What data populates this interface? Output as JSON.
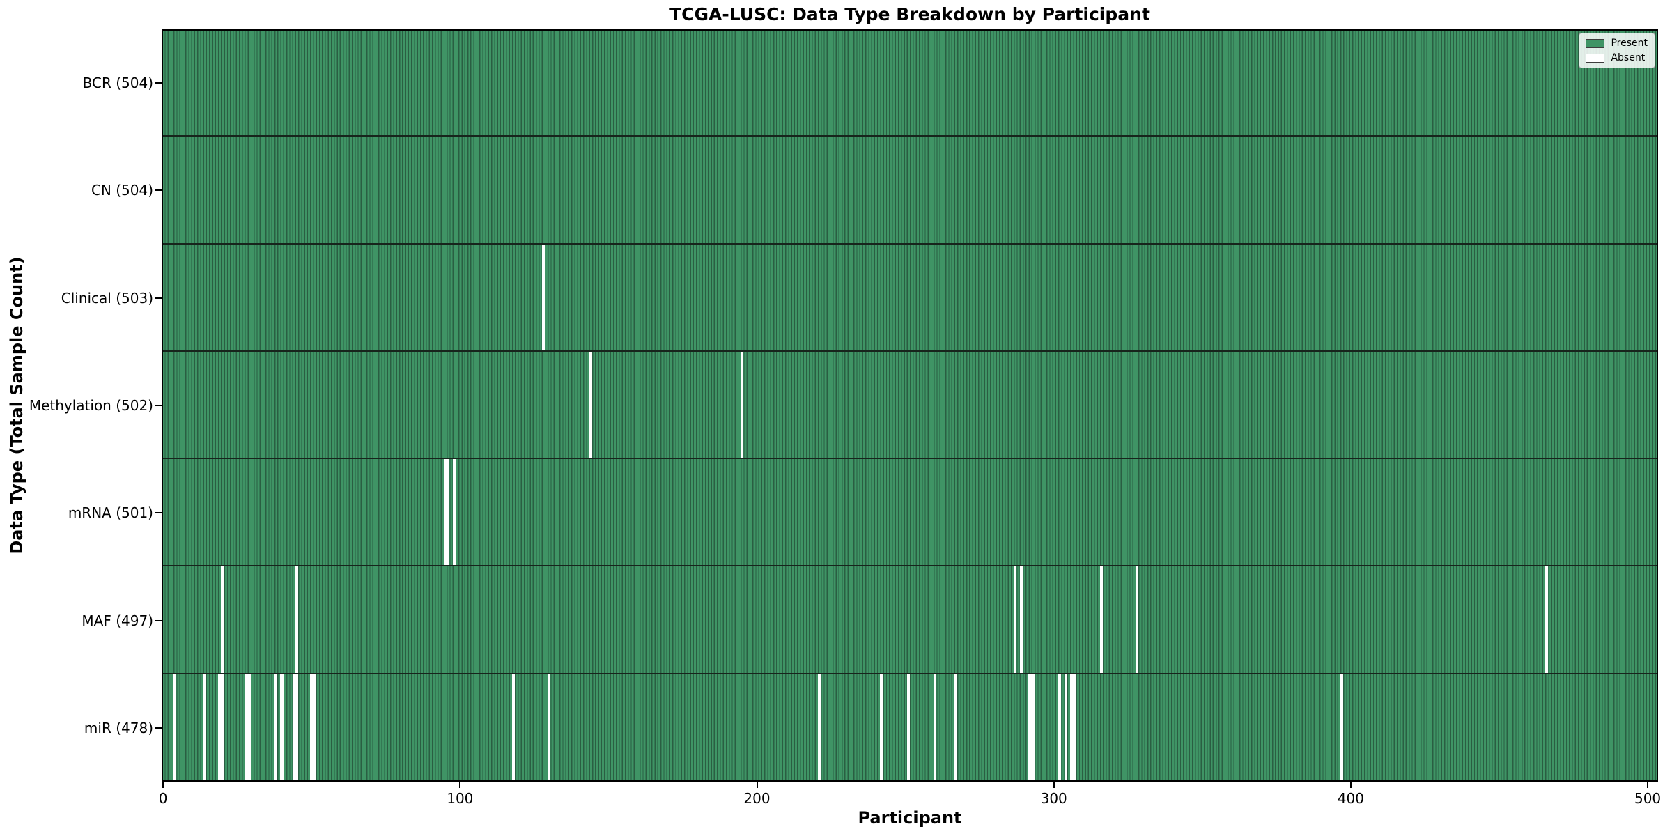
{
  "chart_data": {
    "type": "heatmap",
    "title": "TCGA-LUSC: Data Type Breakdown by Participant",
    "xlabel": "Participant",
    "ylabel": "Data Type (Total Sample Count)",
    "x_ticks": [
      0,
      100,
      200,
      300,
      400,
      500
    ],
    "x_range": [
      0,
      504
    ],
    "grid": false,
    "legend": {
      "position": "upper right",
      "entries": [
        {
          "label": "Present",
          "color": "#3f9465"
        },
        {
          "label": "Absent",
          "color": "#ffffff"
        }
      ]
    },
    "rows": [
      {
        "label": "BCR (504)",
        "data_type": "BCR",
        "present_count": 504,
        "absent_participants": []
      },
      {
        "label": "CN (504)",
        "data_type": "CN",
        "present_count": 504,
        "absent_participants": []
      },
      {
        "label": "Clinical (503)",
        "data_type": "Clinical",
        "present_count": 503,
        "absent_participants": [
          128
        ]
      },
      {
        "label": "Methylation (502)",
        "data_type": "Methylation",
        "present_count": 502,
        "absent_participants": [
          144,
          195
        ]
      },
      {
        "label": "mRNA (501)",
        "data_type": "mRNA",
        "present_count": 501,
        "absent_participants": [
          95,
          96,
          98
        ]
      },
      {
        "label": "MAF (497)",
        "data_type": "MAF",
        "present_count": 497,
        "absent_participants": [
          20,
          45,
          287,
          289,
          316,
          328,
          466
        ]
      },
      {
        "label": "miR (478)",
        "data_type": "miR",
        "present_count": 478,
        "absent_participants": [
          4,
          14,
          19,
          20,
          28,
          29,
          38,
          40,
          44,
          45,
          50,
          51,
          118,
          130,
          221,
          242,
          251,
          260,
          267,
          292,
          293,
          302,
          304,
          306,
          307,
          397
        ]
      }
    ]
  },
  "colors": {
    "present_fill": "#3f9465",
    "bar_edge": "#2a5e42",
    "row_separator": "#17241c",
    "absent_fill": "#ffffff",
    "axis": "#000000"
  }
}
